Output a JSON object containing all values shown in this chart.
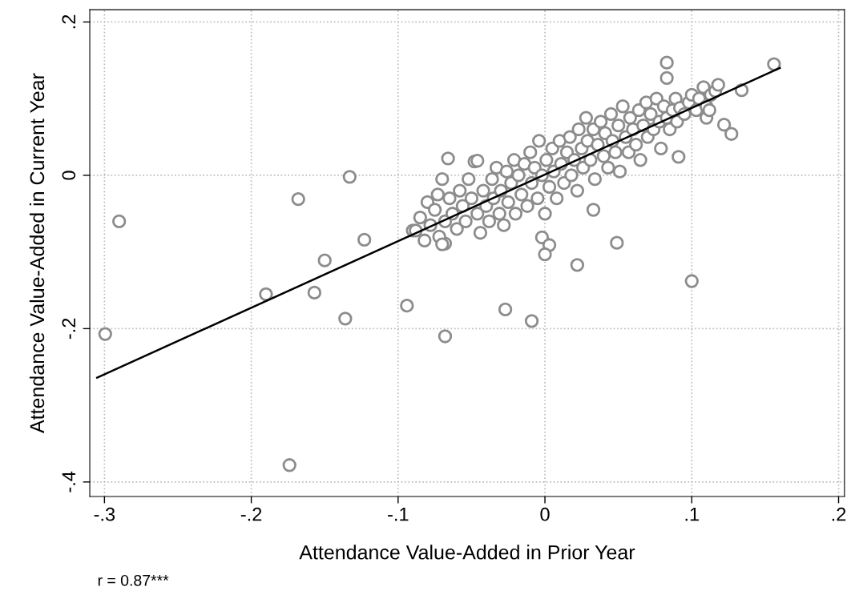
{
  "chart_data": {
    "type": "scatter",
    "xlabel": "Attendance Value-Added in Prior Year",
    "ylabel": "Attendance Value-Added in Current Year",
    "annotations": [
      "r = 0.87***"
    ],
    "xlim": [
      -0.31,
      0.204
    ],
    "ylim": [
      -0.419,
      0.216
    ],
    "xticks": [
      {
        "value": -0.3,
        "label": "-.3"
      },
      {
        "value": -0.2,
        "label": "-.2"
      },
      {
        "value": -0.1,
        "label": "-.1"
      },
      0,
      {
        "value": 0.1,
        "label": ".1"
      },
      {
        "value": 0.2,
        "label": ".2"
      }
    ],
    "yticks": [
      {
        "value": -0.4,
        "label": "-.4"
      },
      {
        "value": -0.2,
        "label": "-.2"
      },
      0,
      {
        "value": 0.2,
        "label": ".2"
      }
    ],
    "grid": true,
    "legend": false,
    "series": [
      {
        "marker": "circle",
        "color": "#8c8c8c",
        "x": [
          -0.2995,
          -0.29,
          -0.19,
          -0.168,
          -0.157,
          -0.15,
          -0.136,
          -0.133,
          -0.123,
          -0.094,
          -0.174,
          -0.068,
          -0.027,
          -0.009,
          0.022,
          0.033,
          0.049,
          0.1,
          0.091,
          0.122,
          0.127,
          0.134,
          0.156,
          0.083,
          0.083,
          -0.002,
          0.003,
          0.0,
          -0.068,
          -0.09,
          -0.088,
          -0.085,
          -0.082,
          -0.08,
          -0.078,
          -0.075,
          -0.073,
          -0.072,
          -0.07,
          -0.07,
          -0.068,
          -0.066,
          -0.065,
          -0.063,
          -0.06,
          -0.058,
          -0.056,
          -0.054,
          -0.052,
          -0.05,
          -0.048,
          -0.046,
          -0.046,
          -0.044,
          -0.042,
          -0.04,
          -0.038,
          -0.036,
          -0.035,
          -0.033,
          -0.031,
          -0.03,
          -0.028,
          -0.026,
          -0.025,
          -0.023,
          -0.021,
          -0.02,
          -0.018,
          -0.016,
          -0.014,
          -0.012,
          -0.01,
          -0.009,
          -0.007,
          -0.005,
          -0.004,
          -0.002,
          0.0,
          0.001,
          0.003,
          0.005,
          0.006,
          0.008,
          0.01,
          0.011,
          0.013,
          0.015,
          0.017,
          0.018,
          0.02,
          0.022,
          0.023,
          0.025,
          0.026,
          0.028,
          0.029,
          0.031,
          0.033,
          0.034,
          0.036,
          0.038,
          0.04,
          0.041,
          0.043,
          0.045,
          0.046,
          0.048,
          0.05,
          0.051,
          0.053,
          0.055,
          0.057,
          0.058,
          0.06,
          0.062,
          0.064,
          0.065,
          0.067,
          0.069,
          0.07,
          0.072,
          0.074,
          0.076,
          0.078,
          0.079,
          0.081,
          0.083,
          0.085,
          0.087,
          0.089,
          0.09,
          0.092,
          0.095,
          0.098,
          0.1,
          0.103,
          0.105,
          0.108,
          0.11,
          0.113,
          0.116,
          0.118,
          0.11,
          0.112
        ],
        "values": [
          -0.207,
          -0.06,
          -0.155,
          -0.031,
          -0.153,
          -0.111,
          -0.187,
          -0.002,
          -0.084,
          -0.17,
          -0.378,
          -0.21,
          -0.175,
          -0.19,
          -0.117,
          -0.045,
          -0.088,
          -0.138,
          0.024,
          0.066,
          0.054,
          0.111,
          0.145,
          0.127,
          0.147,
          -0.081,
          -0.091,
          -0.103,
          -0.089,
          -0.072,
          -0.072,
          -0.055,
          -0.085,
          -0.035,
          -0.065,
          -0.045,
          -0.025,
          -0.08,
          -0.09,
          -0.005,
          -0.06,
          0.022,
          -0.03,
          -0.05,
          -0.07,
          -0.02,
          -0.04,
          -0.06,
          -0.005,
          -0.03,
          0.018,
          0.019,
          -0.05,
          -0.075,
          -0.02,
          -0.04,
          -0.06,
          -0.005,
          -0.03,
          0.01,
          -0.05,
          -0.02,
          -0.065,
          0.005,
          -0.035,
          -0.01,
          0.02,
          -0.05,
          0.0,
          -0.025,
          0.015,
          -0.04,
          0.03,
          -0.01,
          0.01,
          -0.03,
          0.045,
          0.0,
          -0.05,
          0.02,
          -0.015,
          0.035,
          0.005,
          -0.03,
          0.045,
          0.015,
          -0.01,
          0.03,
          0.05,
          0.0,
          0.02,
          -0.02,
          0.06,
          0.035,
          0.01,
          0.075,
          0.045,
          0.02,
          0.06,
          -0.005,
          0.04,
          0.07,
          0.025,
          0.055,
          0.01,
          0.08,
          0.045,
          0.03,
          0.065,
          0.005,
          0.09,
          0.05,
          0.03,
          0.075,
          0.06,
          0.04,
          0.085,
          0.02,
          0.065,
          0.095,
          0.05,
          0.08,
          0.06,
          0.1,
          0.07,
          0.035,
          0.09,
          0.075,
          0.06,
          0.085,
          0.1,
          0.07,
          0.088,
          0.08,
          0.095,
          0.105,
          0.085,
          0.1,
          0.115,
          0.09,
          0.105,
          0.11,
          0.118,
          0.075,
          0.085
        ]
      },
      {
        "type": "line",
        "marker": "none",
        "color": "#000000",
        "x": [
          -0.305,
          0.16
        ],
        "values": [
          -0.264,
          0.14
        ]
      }
    ]
  }
}
